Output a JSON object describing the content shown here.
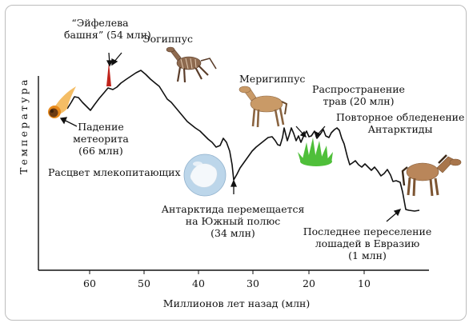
{
  "y_axis_label": "Температура",
  "x_axis_label": "Миллионов лет назад (млн)",
  "x_ticks": [
    "60",
    "50",
    "40",
    "30",
    "20",
    "10"
  ],
  "annotations": {
    "eiffel_line1": "“Эйфелева",
    "eiffel_line2": "башня” (54 млн)",
    "eohippus": "Эогиппус",
    "meteor_line1": "Падение",
    "meteor_line2": "метеорита",
    "meteor_line3": "(66 млн)",
    "mammals": "Расцвет млекопитающих",
    "mesohippus": "Меригиппус",
    "grass_line1": "Распространение",
    "grass_line2": "трав (20 млн)",
    "antarctic_glaciation_line1": "Повторное обледенение",
    "antarctic_glaciation_line2": "Антарктиды",
    "antarctica_line1": "Антарктида перемещается",
    "antarctica_line2": "на Южный полюс",
    "antarctica_line3": "(34 млн)",
    "eurasia_line1": "Последнее переселение",
    "eurasia_line2": "лошадей в Евразию",
    "eurasia_line3": "(1 млн)"
  },
  "colors": {
    "line": "#111111",
    "spike": "#c0241c",
    "meteor": "#e88a1c",
    "grass": "#4fbf3a",
    "horse": "#b9865a",
    "globe": "#bcd6ea"
  },
  "icons": [
    "meteor-icon",
    "eohippus-icon",
    "mesohippus-icon",
    "grass-icon",
    "antarctica-globe-icon",
    "modern-horse-icon"
  ]
}
